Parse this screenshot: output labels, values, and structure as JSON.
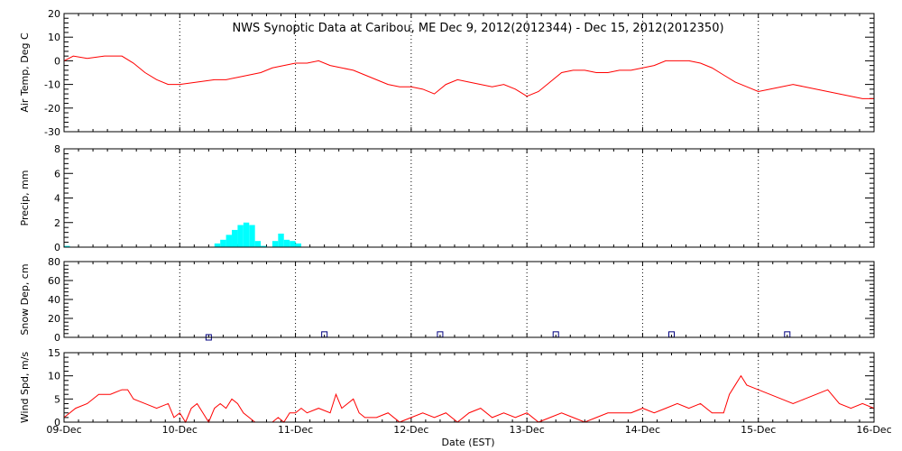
{
  "title": "NWS Synoptic Data at Caribou, ME   Dec  9, 2012(2012344) - Dec 15, 2012(2012350)",
  "xlabel": "Date (EST)",
  "x_tick_labels": [
    "09-Dec",
    "10-Dec",
    "11-Dec",
    "12-Dec",
    "13-Dec",
    "14-Dec",
    "15-Dec",
    "16-Dec"
  ],
  "colors": {
    "line": "#ff0000",
    "precip": "#00ffff",
    "snow": "#000080",
    "axes": "#000000"
  },
  "chart_data": [
    {
      "id": "air-temp",
      "type": "line",
      "ylabel": "Air Temp, Deg C",
      "ylim": [
        -30,
        20
      ],
      "yticks": [
        -30,
        -20,
        -10,
        0,
        10,
        20
      ],
      "grid": "vertical-dotted",
      "series": [
        {
          "x": [
            0,
            0.08,
            0.2,
            0.35,
            0.5,
            0.6,
            0.7,
            0.8,
            0.9,
            1,
            1.15,
            1.3,
            1.4,
            1.5,
            1.6,
            1.7,
            1.8,
            1.9,
            2,
            2.1,
            2.2,
            2.3,
            2.4,
            2.5,
            2.6,
            2.7,
            2.8,
            2.9,
            3,
            3.1,
            3.2,
            3.3,
            3.4,
            3.5,
            3.6,
            3.7,
            3.8,
            3.9,
            4,
            4.1,
            4.2,
            4.3,
            4.4,
            4.5,
            4.6,
            4.7,
            4.8,
            4.9,
            5,
            5.1,
            5.2,
            5.3,
            5.4,
            5.5,
            5.6,
            5.7,
            5.8,
            5.9,
            6,
            6.1,
            6.2,
            6.3,
            6.4,
            6.5,
            6.6,
            6.7,
            6.8,
            6.9,
            7
          ],
          "y": [
            0,
            2,
            1,
            2,
            2,
            -1,
            -5,
            -8,
            -10,
            -10,
            -9,
            -8,
            -8,
            -7,
            -6,
            -5,
            -3,
            -2,
            -1,
            -1,
            0,
            -2,
            -3,
            -4,
            -6,
            -8,
            -10,
            -11,
            -11,
            -12,
            -14,
            -10,
            -8,
            -9,
            -10,
            -11,
            -10,
            -12,
            -15,
            -13,
            -9,
            -5,
            -4,
            -4,
            -5,
            -5,
            -4,
            -4,
            -3,
            -2,
            0,
            0,
            0,
            -1,
            -3,
            -6,
            -9,
            -11,
            -13,
            -12,
            -11,
            -10,
            -11,
            -12,
            -13,
            -14,
            -15,
            -16,
            -16
          ]
        }
      ]
    },
    {
      "id": "precip",
      "type": "bar",
      "ylabel": "Precip, mm",
      "ylim": [
        0,
        8
      ],
      "yticks": [
        0,
        2,
        4,
        6,
        8
      ],
      "grid": "vertical-dotted",
      "series": [
        {
          "x": [
            0.0,
            1.3,
            1.35,
            1.4,
            1.45,
            1.5,
            1.55,
            1.6,
            1.65,
            1.7,
            1.8,
            1.85,
            1.9,
            1.95,
            2.0
          ],
          "values": [
            0.1,
            0.3,
            0.6,
            1.0,
            1.4,
            1.8,
            2.0,
            1.8,
            0.5,
            0.1,
            0.5,
            1.1,
            0.6,
            0.5,
            0.3
          ],
          "bar_width": 0.05
        }
      ]
    },
    {
      "id": "snow-depth",
      "type": "scatter",
      "ylabel": "Snow Dep, cm",
      "ylim": [
        0,
        80
      ],
      "yticks": [
        0,
        20,
        40,
        60,
        80
      ],
      "grid": "vertical-dotted",
      "series": [
        {
          "x": [
            1.25,
            2.25,
            3.25,
            4.25,
            5.25,
            6.25
          ],
          "y": [
            0,
            3,
            3,
            3,
            3,
            3
          ]
        }
      ]
    },
    {
      "id": "wind-speed",
      "type": "line",
      "ylabel": "Wind Spd, m/s",
      "ylim": [
        0,
        15
      ],
      "yticks": [
        0,
        5,
        10,
        15
      ],
      "grid": "vertical-dotted",
      "series": [
        {
          "x": [
            0,
            0.1,
            0.2,
            0.3,
            0.4,
            0.5,
            0.55,
            0.6,
            0.7,
            0.8,
            0.9,
            0.95,
            1,
            1.05,
            1.1,
            1.15,
            1.2,
            1.25,
            1.3,
            1.35,
            1.4,
            1.45,
            1.5,
            1.55,
            1.6,
            1.65,
            1.7,
            1.75,
            1.8,
            1.85,
            1.9,
            1.95,
            2,
            2.05,
            2.1,
            2.2,
            2.3,
            2.35,
            2.4,
            2.45,
            2.5,
            2.55,
            2.6,
            2.7,
            2.8,
            2.9,
            3.0,
            3.1,
            3.2,
            3.3,
            3.4,
            3.5,
            3.6,
            3.7,
            3.8,
            3.9,
            4.0,
            4.1,
            4.2,
            4.3,
            4.4,
            4.5,
            4.6,
            4.7,
            4.8,
            4.9,
            5.0,
            5.1,
            5.2,
            5.3,
            5.4,
            5.5,
            5.6,
            5.7,
            5.75,
            5.8,
            5.85,
            5.9,
            6.0,
            6.1,
            6.2,
            6.3,
            6.4,
            6.5,
            6.6,
            6.7,
            6.8,
            6.9,
            7.0
          ],
          "y": [
            1,
            3,
            4,
            6,
            6,
            7,
            7,
            5,
            4,
            3,
            4,
            1,
            2,
            0,
            3,
            4,
            2,
            0,
            3,
            4,
            3,
            5,
            4,
            2,
            1,
            0,
            0,
            0,
            0,
            1,
            0,
            2,
            2,
            3,
            2,
            3,
            2,
            6,
            3,
            4,
            5,
            2,
            1,
            1,
            2,
            0,
            1,
            2,
            1,
            2,
            0,
            2,
            3,
            1,
            2,
            1,
            2,
            0,
            1,
            2,
            1,
            0,
            1,
            2,
            2,
            2,
            3,
            2,
            3,
            4,
            3,
            4,
            2,
            2,
            6,
            8,
            10,
            8,
            7,
            6,
            5,
            4,
            5,
            6,
            7,
            4,
            3,
            4,
            3
          ]
        }
      ]
    }
  ]
}
